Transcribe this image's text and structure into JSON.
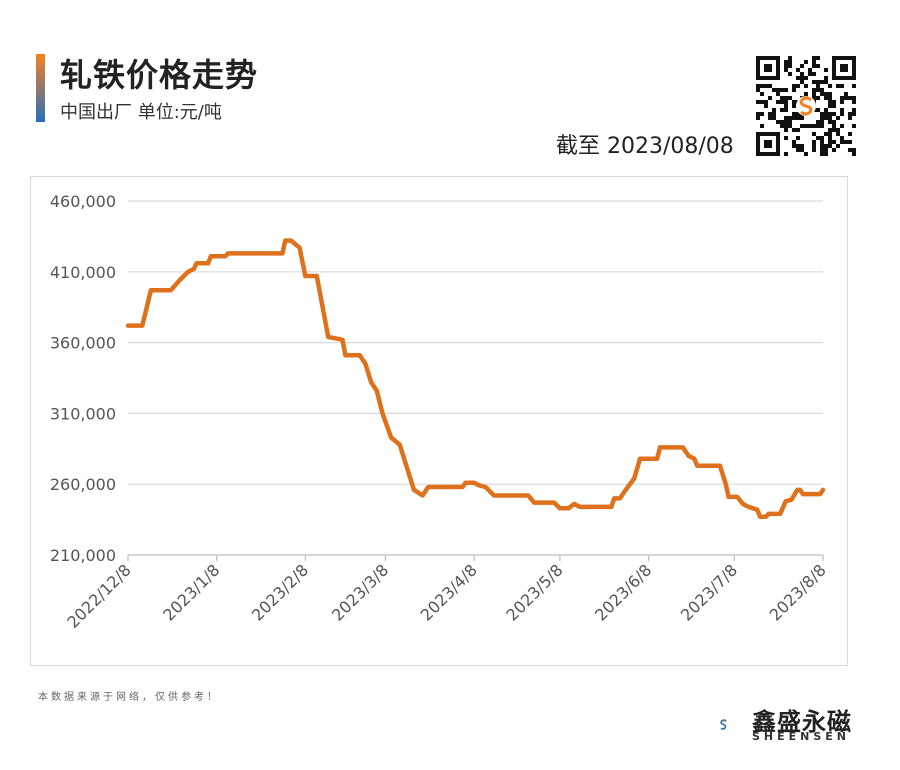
{
  "header": {
    "title": "轧铁价格走势",
    "subtitle": "中国出厂  单位:元/吨",
    "as_of": "截至 2023/08/08"
  },
  "footer": {
    "note": "本数据来源于网络，仅供参考！",
    "brand_cn": "鑫盛永磁",
    "brand_en": "SHEENSEN"
  },
  "colors": {
    "line": "#e0711c",
    "grid": "#d9d9d9",
    "brand_orange": "#f5821f",
    "brand_blue": "#2a6ebb"
  },
  "icons": {
    "qr": "qr-code-icon",
    "logo": "sheensen-logo-icon"
  },
  "chart_data": {
    "type": "line",
    "title": "",
    "xlabel": "",
    "ylabel": "",
    "ylim": [
      210000,
      460000
    ],
    "yticks": [
      210000,
      260000,
      310000,
      360000,
      410000,
      460000
    ],
    "ytick_labels": [
      "210,000",
      "260,000",
      "310,000",
      "360,000",
      "410,000",
      "460,000"
    ],
    "xlim": [
      "2022-12-08",
      "2023-08-08"
    ],
    "xticks": [
      "2022-12-08",
      "2023-01-08",
      "2023-02-08",
      "2023-03-08",
      "2023-04-08",
      "2023-05-08",
      "2023-06-08",
      "2023-07-08",
      "2023-08-08"
    ],
    "xtick_labels": [
      "2022/12/8",
      "2023/1/8",
      "2023/2/8",
      "2023/3/8",
      "2023/4/8",
      "2023/5/8",
      "2023/6/8",
      "2023/7/8",
      "2023/8/8"
    ],
    "grid": "horizontal",
    "legend": "none",
    "series": [
      {
        "name": "",
        "color": "#e0711c",
        "points": [
          [
            "2022-12-08",
            372000
          ],
          [
            "2022-12-13",
            372000
          ],
          [
            "2022-12-16",
            397000
          ],
          [
            "2022-12-23",
            397000
          ],
          [
            "2022-12-26",
            404000
          ],
          [
            "2022-12-29",
            410000
          ],
          [
            "2022-12-31",
            412000
          ],
          [
            "2023-01-01",
            416000
          ],
          [
            "2023-01-05",
            416000
          ],
          [
            "2023-01-06",
            421000
          ],
          [
            "2023-01-11",
            421000
          ],
          [
            "2023-01-12",
            423000
          ],
          [
            "2023-01-31",
            423000
          ],
          [
            "2023-02-01",
            432000
          ],
          [
            "2023-02-03",
            432000
          ],
          [
            "2023-02-06",
            427000
          ],
          [
            "2023-02-08",
            407000
          ],
          [
            "2023-02-12",
            407000
          ],
          [
            "2023-02-16",
            364000
          ],
          [
            "2023-02-21",
            362000
          ],
          [
            "2023-02-22",
            351000
          ],
          [
            "2023-02-27",
            351000
          ],
          [
            "2023-03-01",
            345000
          ],
          [
            "2023-03-03",
            332000
          ],
          [
            "2023-03-05",
            326000
          ],
          [
            "2023-03-07",
            310000
          ],
          [
            "2023-03-10",
            293000
          ],
          [
            "2023-03-13",
            288000
          ],
          [
            "2023-03-18",
            256000
          ],
          [
            "2023-03-21",
            252000
          ],
          [
            "2023-03-23",
            258000
          ],
          [
            "2023-04-04",
            258000
          ],
          [
            "2023-04-05",
            261000
          ],
          [
            "2023-04-08",
            261000
          ],
          [
            "2023-04-10",
            259000
          ],
          [
            "2023-04-12",
            258000
          ],
          [
            "2023-04-15",
            252000
          ],
          [
            "2023-04-27",
            252000
          ],
          [
            "2023-04-29",
            247000
          ],
          [
            "2023-05-06",
            247000
          ],
          [
            "2023-05-08",
            243000
          ],
          [
            "2023-05-11",
            243000
          ],
          [
            "2023-05-13",
            246000
          ],
          [
            "2023-05-15",
            244000
          ],
          [
            "2023-05-26",
            244000
          ],
          [
            "2023-05-27",
            250000
          ],
          [
            "2023-05-29",
            250000
          ],
          [
            "2023-05-31",
            256000
          ],
          [
            "2023-06-03",
            264000
          ],
          [
            "2023-06-05",
            278000
          ],
          [
            "2023-06-11",
            278000
          ],
          [
            "2023-06-12",
            286000
          ],
          [
            "2023-06-20",
            286000
          ],
          [
            "2023-06-22",
            280000
          ],
          [
            "2023-06-24",
            278000
          ],
          [
            "2023-06-25",
            273000
          ],
          [
            "2023-07-03",
            273000
          ],
          [
            "2023-07-05",
            260000
          ],
          [
            "2023-07-06",
            251000
          ],
          [
            "2023-07-09",
            251000
          ],
          [
            "2023-07-11",
            246000
          ],
          [
            "2023-07-13",
            244000
          ],
          [
            "2023-07-16",
            242000
          ],
          [
            "2023-07-17",
            237000
          ],
          [
            "2023-07-19",
            237000
          ],
          [
            "2023-07-20",
            239000
          ],
          [
            "2023-07-24",
            239000
          ],
          [
            "2023-07-26",
            248000
          ],
          [
            "2023-07-28",
            249000
          ],
          [
            "2023-07-30",
            256000
          ],
          [
            "2023-07-31",
            256000
          ],
          [
            "2023-08-01",
            253000
          ],
          [
            "2023-08-07",
            253000
          ],
          [
            "2023-08-08",
            256000
          ]
        ]
      }
    ]
  }
}
